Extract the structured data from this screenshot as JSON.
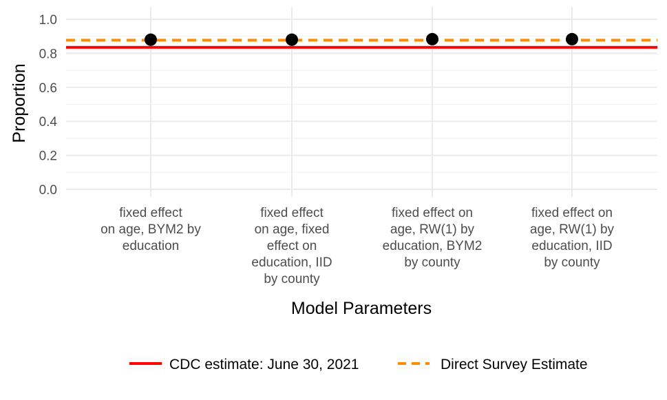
{
  "chart_data": {
    "type": "scatter",
    "xlabel": "Model Parameters",
    "ylabel": "Proportion",
    "ylim": [
      0,
      1.05
    ],
    "yticks": [
      "0.0",
      "0.2",
      "0.4",
      "0.6",
      "0.8",
      "1.0"
    ],
    "grid": true,
    "legend_position": "bottom",
    "categories": [
      [
        "fixed effect",
        "on age, BYM2 by",
        "education"
      ],
      [
        "fixed effect",
        "on age, fixed",
        "effect on",
        "education, IID",
        "by county"
      ],
      [
        "fixed effect on",
        "age, RW(1) by",
        "education, BYM2",
        "by county"
      ],
      [
        "fixed effect on",
        "age, RW(1) by",
        "education, IID",
        "by county"
      ]
    ],
    "points": [
      0.88,
      0.88,
      0.883,
      0.883
    ],
    "point_color": "#000000",
    "reference_lines": [
      {
        "name": "CDC estimate: June 30, 2021",
        "value": 0.835,
        "color": "#ff0000",
        "style": "solid"
      },
      {
        "name": "Direct Survey Estimate",
        "value": 0.877,
        "color": "#ff8c00",
        "style": "dashed"
      }
    ]
  }
}
